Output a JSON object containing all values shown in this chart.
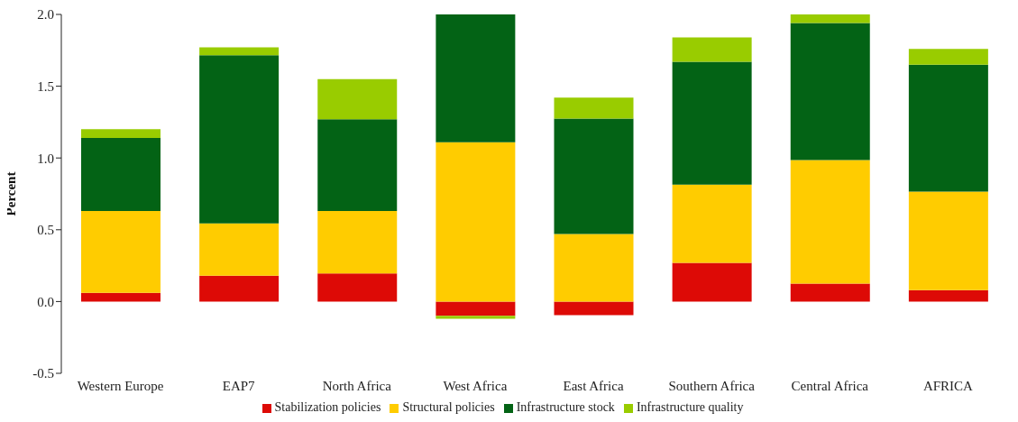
{
  "chart_data": {
    "type": "bar",
    "stacked": true,
    "ylabel": "Percent",
    "categories": [
      "Western Europe",
      "EAP7",
      "North Africa",
      "West Africa",
      "East Africa",
      "Southern Africa",
      "Central Africa",
      "AFRICA"
    ],
    "series": [
      {
        "name": "Stabilization policies",
        "color": "#dd0a06",
        "values": [
          0.06,
          0.18,
          0.195,
          -0.1,
          -0.095,
          0.27,
          0.125,
          0.08
        ]
      },
      {
        "name": "Structural policies",
        "color": "#ffcc00",
        "values": [
          0.57,
          0.365,
          0.435,
          1.11,
          0.47,
          0.545,
          0.86,
          0.685
        ]
      },
      {
        "name": "Infrastructure stock",
        "color": "#036315",
        "values": [
          0.51,
          1.17,
          0.64,
          0.89,
          0.805,
          0.855,
          0.955,
          0.885
        ]
      },
      {
        "name": "Infrastructure quality",
        "color": "#99cc00",
        "values": [
          0.06,
          0.055,
          0.28,
          -0.02,
          0.145,
          0.17,
          0.06,
          0.11
        ]
      }
    ],
    "ylim": [
      -0.5,
      2.0
    ],
    "yticks": [
      {
        "value": -0.5,
        "label": "-0.5"
      },
      {
        "value": 0,
        "label": "0.0"
      },
      {
        "value": 0.5,
        "label": "0.5"
      },
      {
        "value": 1,
        "label": "1.0"
      },
      {
        "value": 1.5,
        "label": "1.5"
      },
      {
        "value": 2,
        "label": "2.0"
      }
    ],
    "grid": false,
    "legend": "bottom"
  }
}
